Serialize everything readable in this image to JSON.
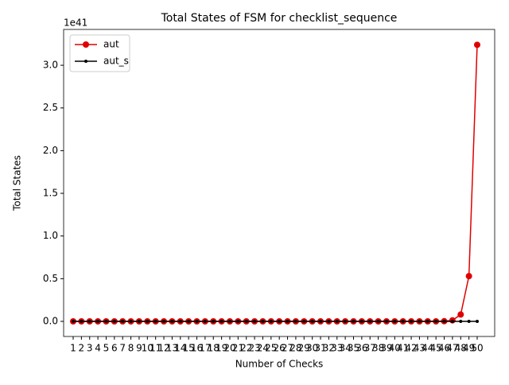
{
  "chart_data": {
    "type": "line",
    "title": "Total States of FSM for checklist_sequence",
    "x_label": "Number of Checks",
    "y_label": "Total States",
    "y_offset": "1e41",
    "categories": [
      1,
      2,
      3,
      4,
      5,
      6,
      7,
      8,
      9,
      10,
      11,
      12,
      13,
      14,
      15,
      16,
      17,
      18,
      19,
      20,
      21,
      22,
      23,
      24,
      25,
      26,
      27,
      28,
      29,
      30,
      31,
      32,
      33,
      34,
      35,
      36,
      37,
      38,
      39,
      40,
      41,
      42,
      43,
      44,
      45,
      46,
      47,
      48,
      49,
      50
    ],
    "series": [
      {
        "name": "aut",
        "color": "#e00000",
        "marker": "large",
        "values": [
          0,
          0,
          0,
          0,
          0,
          0,
          0,
          0,
          0,
          0,
          0,
          0,
          0,
          0,
          0,
          0,
          0,
          0,
          0,
          0,
          0,
          0,
          0,
          0,
          0,
          0,
          0,
          0,
          0,
          0,
          0,
          0,
          0,
          0,
          0,
          0,
          0,
          0,
          0,
          0,
          0,
          0,
          0,
          0,
          0,
          0.002,
          0.012,
          0.08,
          0.53,
          3.24
        ]
      },
      {
        "name": "aut_s",
        "color": "#000000",
        "marker": "small",
        "values": [
          0,
          0,
          0,
          0,
          0,
          0,
          0,
          0,
          0,
          0,
          0,
          0,
          0,
          0,
          0,
          0,
          0,
          0,
          0,
          0,
          0,
          0,
          0,
          0,
          0,
          0,
          0,
          0,
          0,
          0,
          0,
          0,
          0,
          0,
          0,
          0,
          0,
          0,
          0,
          0,
          0,
          0,
          0,
          0,
          0,
          0,
          0,
          0,
          0,
          0
        ]
      }
    ],
    "ylim": [
      -0.177,
      3.42
    ],
    "yticks": [
      {
        "value": 0,
        "label": "0.0"
      },
      {
        "value": 0.5,
        "label": "0.5"
      },
      {
        "value": 1,
        "label": "1.0"
      },
      {
        "value": 1.5,
        "label": "1.5"
      },
      {
        "value": 2,
        "label": "2.0"
      },
      {
        "value": 2.5,
        "label": "2.5"
      },
      {
        "value": 3,
        "label": "3.0"
      }
    ],
    "legend": "upper left",
    "grid": false
  }
}
